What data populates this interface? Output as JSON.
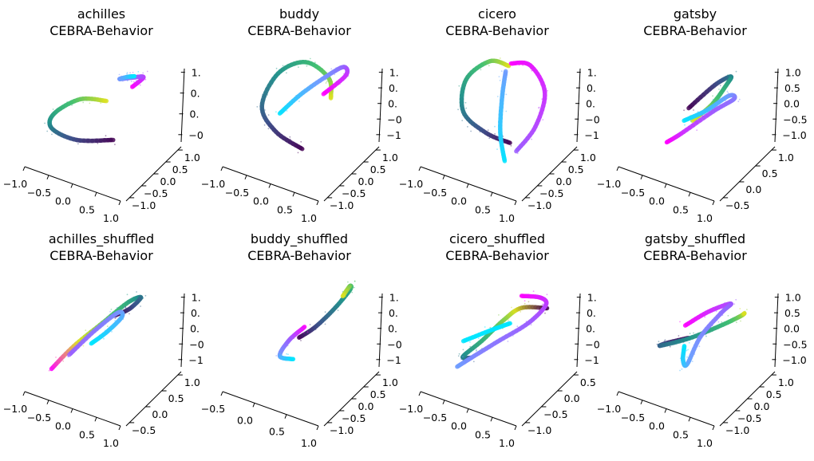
{
  "figure": {
    "background": "#ffffff",
    "colormap": [
      "#440154",
      "#3b528b",
      "#21918c",
      "#3fbf71",
      "#d9e021",
      "#00e5ff",
      "#6f9cff",
      "#9b5cff",
      "#ff00ff"
    ]
  },
  "chart_data": [
    {
      "type": "scatter",
      "projection": "3d",
      "title_lines": [
        "achilles",
        "CEBRA-Behavior"
      ],
      "x_ticks": [
        "−1.0",
        "−0.5",
        "0.0",
        "0.5",
        "1.0"
      ],
      "y_ticks": [
        "−1.0",
        "−0.5",
        "0.0",
        "0.5",
        "1.0"
      ],
      "z_ticks": [
        "−0",
        "0.",
        "0.",
        "1."
      ],
      "curves": [
        {
          "points": [
            [
              -0.05,
              0.85,
              0.05
            ],
            [
              -0.55,
              0.55,
              0.1
            ],
            [
              -0.8,
              0.0,
              0.15
            ],
            [
              -0.6,
              -0.55,
              0.05
            ],
            [
              -0.1,
              -0.85,
              -0.05
            ],
            [
              0.25,
              -0.6,
              -0.1
            ]
          ],
          "colors": [
            "#440154",
            "#3b528b",
            "#21918c",
            "#3fbf71",
            "#d9e021"
          ]
        },
        {
          "points": [
            [
              0.3,
              0.7,
              1.0
            ],
            [
              0.55,
              0.45,
              0.95
            ],
            [
              0.45,
              0.15,
              0.8
            ],
            [
              0.35,
              -0.2,
              0.6
            ],
            [
              0.55,
              -0.45,
              0.4
            ],
            [
              0.7,
              -0.6,
              0.25
            ]
          ],
          "colors": [
            "#ff00ff",
            "#9b5cff",
            "#6f9cff",
            "#00e5ff"
          ]
        }
      ]
    },
    {
      "type": "scatter",
      "projection": "3d",
      "title_lines": [
        "buddy",
        "CEBRA-Behavior"
      ],
      "x_ticks": [
        "−1.0",
        "−0.5",
        "0.0",
        "0.5",
        "1.0"
      ],
      "y_ticks": [
        "−1.0",
        "−0.5",
        "0.0",
        "0.5",
        "1.0"
      ],
      "z_ticks": [
        "−1",
        "−0",
        "0.",
        "0.",
        "1."
      ],
      "curves": [
        {
          "points": [
            [
              -0.15,
              0.7,
              -0.2
            ],
            [
              -0.5,
              0.45,
              0.2
            ],
            [
              -0.6,
              0.0,
              0.55
            ],
            [
              -0.2,
              -0.5,
              0.8
            ],
            [
              0.3,
              -0.7,
              0.7
            ],
            [
              0.6,
              -0.45,
              0.35
            ],
            [
              0.55,
              -0.15,
              0.1
            ]
          ],
          "colors": [
            "#440154",
            "#3b528b",
            "#21918c",
            "#3fbf71",
            "#d9e021"
          ]
        },
        {
          "points": [
            [
              -0.2,
              -0.4,
              -0.05
            ],
            [
              0.05,
              -0.1,
              0.45
            ],
            [
              0.45,
              0.0,
              0.75
            ],
            [
              0.8,
              -0.3,
              0.6
            ],
            [
              0.9,
              -0.55,
              0.2
            ],
            [
              0.6,
              -0.75,
              -0.2
            ]
          ],
          "colors": [
            "#00e5ff",
            "#6f9cff",
            "#9b5cff",
            "#ff00ff"
          ]
        }
      ]
    },
    {
      "type": "scatter",
      "projection": "3d",
      "title_lines": [
        "cicero",
        "CEBRA-Behavior"
      ],
      "x_ticks": [
        "−1.0",
        "−0.5",
        "0.0",
        "0.5",
        "1.0"
      ],
      "y_ticks": [
        "−1.0",
        "−0.5",
        "0.0",
        "0.5",
        "1.0"
      ],
      "z_ticks": [
        "−1",
        "−0",
        "0.",
        "0.",
        "1."
      ],
      "curves": [
        {
          "points": [
            [
              0.05,
              0.55,
              -0.25
            ],
            [
              -0.35,
              0.6,
              0.2
            ],
            [
              -0.6,
              0.2,
              0.55
            ],
            [
              -0.4,
              -0.35,
              0.85
            ],
            [
              0.05,
              -0.6,
              0.9
            ],
            [
              0.3,
              -0.4,
              0.8
            ]
          ],
          "colors": [
            "#440154",
            "#3b528b",
            "#21918c",
            "#3fbf71",
            "#d9e021"
          ]
        },
        {
          "points": [
            [
              0.35,
              -0.45,
              0.8
            ],
            [
              0.7,
              -0.6,
              0.5
            ],
            [
              0.85,
              -0.3,
              0.0
            ],
            [
              0.6,
              0.05,
              -0.45
            ],
            [
              0.25,
              0.2,
              -0.75
            ]
          ],
          "colors": [
            "#ff00ff",
            "#9b5cff"
          ]
        },
        {
          "points": [
            [
              0.05,
              0.25,
              -0.85
            ],
            [
              0.05,
              0.0,
              -0.35
            ],
            [
              0.15,
              -0.25,
              0.25
            ],
            [
              0.25,
              -0.4,
              0.7
            ]
          ],
          "colors": [
            "#00e5ff",
            "#6f9cff"
          ]
        }
      ]
    },
    {
      "type": "scatter",
      "projection": "3d",
      "title_lines": [
        "gatsby",
        "CEBRA-Behavior"
      ],
      "x_ticks": [
        "−1.0",
        "−0.5",
        "0.0",
        "0.5",
        "1.0"
      ],
      "y_ticks": [
        "−0.5",
        "0.0",
        "0.5",
        "1.0"
      ],
      "z_ticks": [
        "−1.0",
        "−0.5",
        "0.0",
        "0.5",
        "1.0"
      ],
      "curves": [
        {
          "points": [
            [
              -0.3,
              0.7,
              0.8
            ],
            [
              0.2,
              0.4,
              0.9
            ],
            [
              0.6,
              -0.1,
              0.6
            ],
            [
              0.6,
              -0.35,
              0.25
            ],
            [
              0.35,
              -0.3,
              -0.05
            ],
            [
              0.0,
              -0.15,
              -0.15
            ]
          ],
          "colors": [
            "#440154",
            "#3b528b",
            "#21918c",
            "#3fbf71",
            "#d9e021"
          ]
        },
        {
          "points": [
            [
              -0.15,
              -0.1,
              -0.05
            ],
            [
              0.2,
              -0.05,
              0.05
            ],
            [
              0.6,
              -0.2,
              0.1
            ],
            [
              0.75,
              -0.45,
              -0.2
            ],
            [
              0.5,
              -0.75,
              -0.55
            ],
            [
              0.0,
              -0.8,
              -0.85
            ],
            [
              -0.3,
              -0.55,
              -0.75
            ]
          ],
          "colors": [
            "#00e5ff",
            "#6f9cff",
            "#9b5cff",
            "#ff00ff"
          ]
        }
      ]
    },
    {
      "type": "scatter",
      "projection": "3d",
      "title_lines": [
        "achilles_shuffled",
        "CEBRA-Behavior"
      ],
      "x_ticks": [
        "−1.0",
        "−0.5",
        "0.0",
        "0.5",
        "1.0"
      ],
      "y_ticks": [
        "−0.5",
        "0.0",
        "0.5",
        "1.0"
      ],
      "z_ticks": [
        "−1",
        "−0",
        "0.",
        "0.",
        "1."
      ],
      "curves": [
        {
          "points": [
            [
              -0.9,
              0.35,
              0.05
            ],
            [
              -0.6,
              0.55,
              0.55
            ],
            [
              -0.15,
              0.6,
              0.9
            ],
            [
              0.35,
              0.3,
              0.95
            ],
            [
              0.65,
              -0.05,
              0.7
            ],
            [
              0.55,
              -0.35,
              0.3
            ],
            [
              0.35,
              -0.5,
              0.15
            ]
          ],
          "colors": [
            "#ff00ff",
            "#d9e021",
            "#3fbf71",
            "#21918c",
            "#3b528b",
            "#440154"
          ]
        },
        {
          "points": [
            [
              -0.6,
              0.3,
              0.2
            ],
            [
              -0.2,
              0.3,
              0.55
            ],
            [
              0.25,
              0.05,
              0.6
            ],
            [
              0.4,
              -0.25,
              0.25
            ],
            [
              0.25,
              -0.55,
              -0.2
            ],
            [
              0.05,
              -0.75,
              -0.5
            ]
          ],
          "colors": [
            "#9b5cff",
            "#6f9cff",
            "#00e5ff"
          ]
        }
      ]
    },
    {
      "type": "scatter",
      "projection": "3d",
      "title_lines": [
        "buddy_shuffled",
        "CEBRA-Behavior"
      ],
      "x_ticks": [
        "−0.5",
        "0.0",
        "0.5",
        "1.0"
      ],
      "y_ticks": [
        "−1.0",
        "−0.5",
        "0.0",
        "0.5",
        "1.0"
      ],
      "z_ticks": [
        "−1",
        "−0",
        "0.",
        "0.",
        "1."
      ],
      "curves": [
        {
          "points": [
            [
              -0.2,
              0.7,
              0.65
            ],
            [
              0.15,
              0.35,
              0.5
            ],
            [
              0.55,
              0.0,
              0.5
            ],
            [
              0.85,
              -0.15,
              0.7
            ],
            [
              0.8,
              0.05,
              0.95
            ],
            [
              0.6,
              0.35,
              1.0
            ]
          ],
          "colors": [
            "#440154",
            "#3b528b",
            "#21918c",
            "#3fbf71",
            "#d9e021"
          ]
        },
        {
          "points": [
            [
              0.0,
              0.3,
              0.55
            ],
            [
              -0.15,
              -0.05,
              0.1
            ],
            [
              -0.2,
              -0.4,
              -0.45
            ],
            [
              0.1,
              -0.7,
              -0.85
            ]
          ],
          "colors": [
            "#ff00ff",
            "#9b5cff",
            "#6f9cff",
            "#00e5ff"
          ]
        }
      ]
    },
    {
      "type": "scatter",
      "projection": "3d",
      "title_lines": [
        "cicero_shuffled",
        "CEBRA-Behavior"
      ],
      "x_ticks": [
        "−1.0",
        "−0.5",
        "0.0",
        "0.5",
        "1.0"
      ],
      "y_ticks": [
        "−1.0",
        "−0.5",
        "0.0",
        "0.5"
      ],
      "z_ticks": [
        "−1",
        "−0",
        "0.",
        "0.",
        "1."
      ],
      "curves": [
        {
          "points": [
            [
              -0.55,
              0.45,
              0.2
            ],
            [
              -0.55,
              0.0,
              -0.05
            ],
            [
              -0.15,
              -0.35,
              -0.1
            ],
            [
              0.25,
              -0.5,
              0.1
            ],
            [
              0.55,
              -0.55,
              0.2
            ],
            [
              0.9,
              -0.35,
              0.15
            ]
          ],
          "colors": [
            "#3b528b",
            "#21918c",
            "#3fbf71",
            "#d9e021",
            "#440154"
          ]
        },
        {
          "points": [
            [
              0.35,
              0.15,
              1.0
            ],
            [
              0.7,
              0.0,
              0.7
            ],
            [
              0.85,
              -0.25,
              0.3
            ],
            [
              0.65,
              -0.55,
              -0.2
            ],
            [
              0.2,
              -0.7,
              -0.5
            ],
            [
              -0.25,
              -0.55,
              -0.55
            ],
            [
              -0.6,
              -0.15,
              -0.35
            ]
          ],
          "colors": [
            "#ff00ff",
            "#9b5cff",
            "#6f9cff"
          ]
        },
        {
          "points": [
            [
              -0.6,
              0.2,
              0.45
            ],
            [
              -0.2,
              0.35,
              0.6
            ],
            [
              0.15,
              0.2,
              0.5
            ]
          ],
          "colors": [
            "#00e5ff"
          ]
        }
      ]
    },
    {
      "type": "scatter",
      "projection": "3d",
      "title_lines": [
        "gatsby_shuffled",
        "CEBRA-Behavior"
      ],
      "x_ticks": [
        "−1.0",
        "−0.5",
        "0.0",
        "0.5",
        "1.0"
      ],
      "y_ticks": [
        "−1.0",
        "−0.5",
        "0.0",
        "0.5",
        "1.0"
      ],
      "z_ticks": [
        "−1.0",
        "−0.5",
        "0.0",
        "0.5",
        "1.0"
      ],
      "curves": [
        {
          "points": [
            [
              0.05,
              -0.55,
              -0.25
            ],
            [
              -0.35,
              -0.35,
              -0.05
            ],
            [
              -0.55,
              0.0,
              0.2
            ],
            [
              -0.15,
              0.2,
              0.3
            ],
            [
              0.35,
              0.2,
              0.35
            ],
            [
              0.7,
              0.05,
              0.3
            ],
            [
              0.85,
              -0.2,
              0.15
            ]
          ],
          "colors": [
            "#440154",
            "#3b528b",
            "#21918c",
            "#3fbf71",
            "#d9e021"
          ]
        },
        {
          "points": [
            [
              -0.3,
              0.5,
              0.85
            ],
            [
              0.15,
              0.25,
              0.8
            ],
            [
              0.6,
              -0.1,
              0.55
            ],
            [
              0.55,
              -0.45,
              0.15
            ],
            [
              0.2,
              -0.4,
              -0.2
            ],
            [
              -0.1,
              -0.1,
              -0.5
            ],
            [
              -0.25,
              0.2,
              -0.15
            ],
            [
              -0.3,
              0.45,
              0.35
            ]
          ],
          "colors": [
            "#ff00ff",
            "#9b5cff",
            "#6f9cff",
            "#00e5ff"
          ]
        }
      ]
    }
  ]
}
